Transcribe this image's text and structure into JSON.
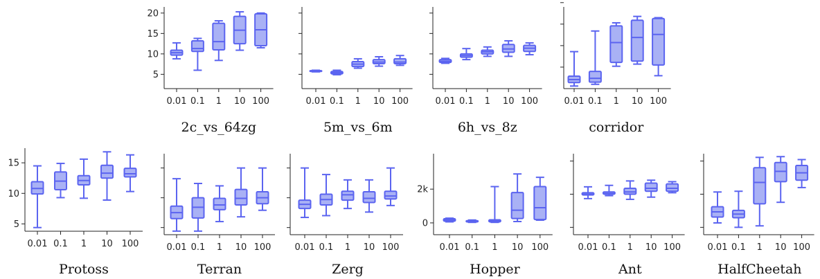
{
  "style": {
    "box_fill": "#a9b1f5",
    "box_stroke": "#5b64f0",
    "axis_color": "#222222"
  },
  "chart_data": [
    {
      "type": "box",
      "title": "2c_vs_64zg",
      "categories": [
        "0.01",
        "0.1",
        "1",
        "10",
        "100"
      ],
      "yticks": [
        5,
        10,
        15,
        20
      ],
      "ylim": [
        1.5,
        21.5
      ],
      "boxes": [
        {
          "min": 8.8,
          "q1": 9.7,
          "median": 10.3,
          "q3": 10.9,
          "max": 12.7
        },
        {
          "min": 6.0,
          "q1": 10.6,
          "median": 11.3,
          "q3": 13.2,
          "max": 13.8
        },
        {
          "min": 8.4,
          "q1": 11.0,
          "median": 13.0,
          "q3": 17.5,
          "max": 18.1
        },
        {
          "min": 10.9,
          "q1": 12.5,
          "median": 15.8,
          "q3": 19.2,
          "max": 20.3
        },
        {
          "min": 11.5,
          "q1": 12.0,
          "median": 15.9,
          "q3": 19.8,
          "max": 20.0
        }
      ]
    },
    {
      "type": "box",
      "title": "5m_vs_6m",
      "categories": [
        "0.01",
        "0.1",
        "1",
        "10",
        "100"
      ],
      "yticks": [
        5,
        10,
        15,
        20
      ],
      "ylim": [
        1.5,
        21.5
      ],
      "ytick_labels": false,
      "boxes": [
        {
          "min": 5.6,
          "q1": 5.7,
          "median": 5.8,
          "q3": 5.9,
          "max": 6.0
        },
        {
          "min": 4.9,
          "q1": 5.1,
          "median": 5.4,
          "q3": 5.7,
          "max": 6.0
        },
        {
          "min": 6.5,
          "q1": 6.9,
          "median": 7.5,
          "q3": 8.1,
          "max": 8.8
        },
        {
          "min": 7.0,
          "q1": 7.6,
          "median": 8.0,
          "q3": 8.6,
          "max": 9.3
        },
        {
          "min": 7.2,
          "q1": 7.6,
          "median": 8.0,
          "q3": 8.8,
          "max": 9.6
        }
      ]
    },
    {
      "type": "box",
      "title": "6h_vs_8z",
      "categories": [
        "0.01",
        "0.1",
        "1",
        "10",
        "100"
      ],
      "yticks": [
        5,
        10,
        15,
        20
      ],
      "ylim": [
        1.5,
        21.5
      ],
      "ytick_labels": false,
      "boxes": [
        {
          "min": 7.7,
          "q1": 7.9,
          "median": 8.2,
          "q3": 8.6,
          "max": 8.9
        },
        {
          "min": 8.6,
          "q1": 9.2,
          "median": 9.6,
          "q3": 10.0,
          "max": 11.3
        },
        {
          "min": 9.4,
          "q1": 10.0,
          "median": 10.5,
          "q3": 10.9,
          "max": 11.7
        },
        {
          "min": 9.4,
          "q1": 10.4,
          "median": 11.2,
          "q3": 12.3,
          "max": 13.2
        },
        {
          "min": 9.8,
          "q1": 10.6,
          "median": 11.4,
          "q3": 12.1,
          "max": 12.7
        }
      ]
    },
    {
      "type": "box",
      "title": "corridor",
      "categories": [
        "0.01",
        "0.1",
        "1",
        "10",
        "100"
      ],
      "yticks": [
        5,
        10,
        15,
        20
      ],
      "ylim": [
        0,
        19
      ],
      "ytick_labels": false,
      "boxes": [
        {
          "min": 0.6,
          "q1": 1.4,
          "median": 2.1,
          "q3": 2.9,
          "max": 8.6
        },
        {
          "min": 1.0,
          "q1": 1.5,
          "median": 2.4,
          "q3": 4.0,
          "max": 13.4
        },
        {
          "min": 5.2,
          "q1": 6.1,
          "median": 10.7,
          "q3": 14.6,
          "max": 15.3
        },
        {
          "min": 5.7,
          "q1": 6.4,
          "median": 11.9,
          "q3": 15.9,
          "max": 16.8
        },
        {
          "min": 3.0,
          "q1": 5.5,
          "median": 12.6,
          "q3": 16.3,
          "max": 16.5
        }
      ]
    },
    {
      "type": "box",
      "title": "Protoss",
      "categories": [
        "0.01",
        "0.1",
        "1",
        "10",
        "100"
      ],
      "yticks": [
        5,
        10,
        15
      ],
      "ylim": [
        3.8,
        17.4
      ],
      "boxes": [
        {
          "min": 4.4,
          "q1": 9.9,
          "median": 10.8,
          "q3": 11.9,
          "max": 14.5
        },
        {
          "min": 9.3,
          "q1": 10.6,
          "median": 12.0,
          "q3": 13.5,
          "max": 14.9
        },
        {
          "min": 9.2,
          "q1": 11.4,
          "median": 12.1,
          "q3": 12.9,
          "max": 15.6
        },
        {
          "min": 8.9,
          "q1": 12.5,
          "median": 13.3,
          "q3": 14.6,
          "max": 16.8
        },
        {
          "min": 10.3,
          "q1": 12.7,
          "median": 13.2,
          "q3": 14.1,
          "max": 16.3
        }
      ]
    },
    {
      "type": "box",
      "title": "Terran",
      "categories": [
        "0.01",
        "0.1",
        "1",
        "10",
        "100"
      ],
      "yticks": [
        5,
        10,
        15
      ],
      "ylim": [
        3.8,
        17.4
      ],
      "ytick_labels": false,
      "boxes": [
        {
          "min": 4.4,
          "q1": 6.5,
          "median": 7.5,
          "q3": 8.6,
          "max": 13.2
        },
        {
          "min": 4.4,
          "q1": 6.6,
          "median": 8.4,
          "q3": 10.0,
          "max": 12.4
        },
        {
          "min": 6.0,
          "q1": 8.0,
          "median": 8.8,
          "q3": 9.9,
          "max": 12.0
        },
        {
          "min": 6.8,
          "q1": 8.8,
          "median": 9.9,
          "q3": 11.4,
          "max": 15.0
        },
        {
          "min": 7.9,
          "q1": 9.0,
          "median": 10.0,
          "q3": 11.0,
          "max": 15.0
        }
      ]
    },
    {
      "type": "box",
      "title": "Zerg",
      "categories": [
        "0.01",
        "0.1",
        "1",
        "10",
        "100"
      ],
      "yticks": [
        5,
        10,
        15
      ],
      "ylim": [
        3.8,
        17.4
      ],
      "ytick_labels": false,
      "boxes": [
        {
          "min": 6.7,
          "q1": 8.2,
          "median": 8.9,
          "q3": 9.6,
          "max": 15.0
        },
        {
          "min": 7.0,
          "q1": 8.8,
          "median": 9.7,
          "q3": 10.6,
          "max": 13.9
        },
        {
          "min": 8.2,
          "q1": 9.6,
          "median": 10.5,
          "q3": 11.1,
          "max": 13.0
        },
        {
          "min": 7.6,
          "q1": 9.2,
          "median": 9.9,
          "q3": 11.0,
          "max": 13.0
        },
        {
          "min": 8.7,
          "q1": 9.8,
          "median": 10.3,
          "q3": 11.1,
          "max": 15.0
        }
      ]
    },
    {
      "type": "box",
      "title": "Hopper",
      "categories": [
        "0.01",
        "0.1",
        "1",
        "10",
        "100"
      ],
      "yticks": [
        0,
        2000
      ],
      "ytick_text": [
        "0",
        "2k"
      ],
      "ylim": [
        -700,
        4100
      ],
      "boxes": [
        {
          "min": 60,
          "q1": 100,
          "median": 180,
          "q3": 250,
          "max": 280
        },
        {
          "min": 30,
          "q1": 60,
          "median": 100,
          "q3": 130,
          "max": 170
        },
        {
          "min": 30,
          "q1": 60,
          "median": 110,
          "q3": 180,
          "max": 2150
        },
        {
          "min": 80,
          "q1": 260,
          "median": 750,
          "q3": 1800,
          "max": 2900
        },
        {
          "min": 160,
          "q1": 200,
          "median": 900,
          "q3": 2150,
          "max": 2700
        }
      ]
    },
    {
      "type": "box",
      "title": "Ant",
      "categories": [
        "0.01",
        "0.1",
        "1",
        "10",
        "100"
      ],
      "yticks": [],
      "ylim": [
        -10,
        100
      ],
      "ytick_positions_unlabeled": [
        0,
        45,
        90
      ],
      "boxes": [
        {
          "min": 39,
          "q1": 44,
          "median": 45,
          "q3": 47,
          "max": 55
        },
        {
          "min": 43,
          "q1": 45,
          "median": 46,
          "q3": 48,
          "max": 57
        },
        {
          "min": 38,
          "q1": 45,
          "median": 48,
          "q3": 53,
          "max": 63
        },
        {
          "min": 41,
          "q1": 49,
          "median": 53,
          "q3": 60,
          "max": 64
        },
        {
          "min": 47,
          "q1": 49,
          "median": 53,
          "q3": 59,
          "max": 62
        }
      ]
    },
    {
      "type": "box",
      "title": "HalfCheetah",
      "categories": [
        "0.01",
        "0.1",
        "1",
        "10",
        "100"
      ],
      "yticks": [],
      "ylim": [
        -10,
        100
      ],
      "ytick_positions_unlabeled": [
        0,
        45,
        90
      ],
      "boxes": [
        {
          "min": 6,
          "q1": 14,
          "median": 21,
          "q3": 28,
          "max": 48
        },
        {
          "min": 0,
          "q1": 13,
          "median": 18,
          "q3": 23,
          "max": 49
        },
        {
          "min": 2,
          "q1": 32,
          "median": 61,
          "q3": 81,
          "max": 95
        },
        {
          "min": 34,
          "q1": 62,
          "median": 76,
          "q3": 88,
          "max": 96
        },
        {
          "min": 54,
          "q1": 64,
          "median": 74,
          "q3": 84,
          "max": 92
        }
      ]
    }
  ]
}
